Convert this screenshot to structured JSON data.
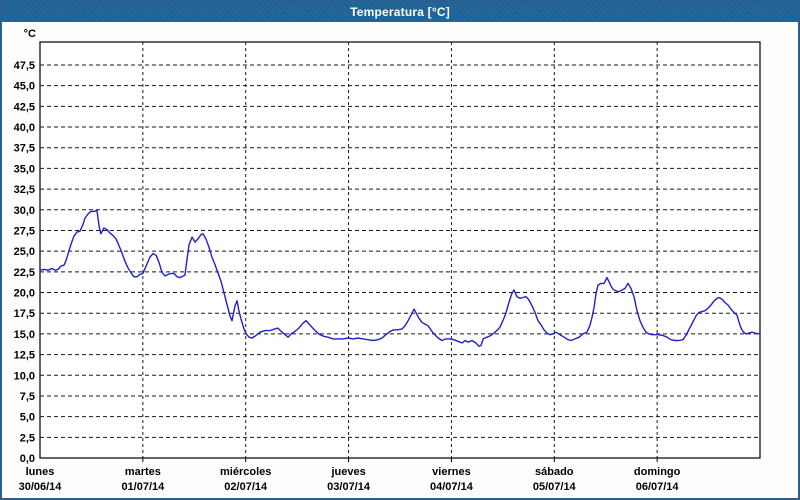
{
  "window": {
    "title": "Temperatura [°C]"
  },
  "colors": {
    "titlebar_bg": "#1e6295",
    "titlebar_text": "#ffffff",
    "window_border": "#28618f",
    "plot_bg": "#ffffff",
    "plot_border": "#000000",
    "grid": "#1a1a1a",
    "text": "#000000",
    "line": "#2121c8"
  },
  "chart_data": {
    "type": "line",
    "title": "Temperatura [°C]",
    "ylabel": "°C",
    "xlabel": "",
    "legend": "none",
    "grid": "dashed",
    "y_axis": {
      "unit_label": "°C",
      "min": 0,
      "max": 50.3,
      "tick_step": 2.5,
      "ticks": [
        {
          "v": 0.0,
          "label": "0,0"
        },
        {
          "v": 2.5,
          "label": "2,5"
        },
        {
          "v": 5.0,
          "label": "5,0"
        },
        {
          "v": 7.5,
          "label": "7,5"
        },
        {
          "v": 10.0,
          "label": "10,0"
        },
        {
          "v": 12.5,
          "label": "12,5"
        },
        {
          "v": 15.0,
          "label": "15,0"
        },
        {
          "v": 17.5,
          "label": "17,5"
        },
        {
          "v": 20.0,
          "label": "20,0"
        },
        {
          "v": 22.5,
          "label": "22,5"
        },
        {
          "v": 25.0,
          "label": "25,0"
        },
        {
          "v": 27.5,
          "label": "27,5"
        },
        {
          "v": 30.0,
          "label": "30,0"
        },
        {
          "v": 32.5,
          "label": "32,5"
        },
        {
          "v": 35.0,
          "label": "35,0"
        },
        {
          "v": 37.5,
          "label": "37,5"
        },
        {
          "v": 40.0,
          "label": "40,0"
        },
        {
          "v": 42.5,
          "label": "42,5"
        },
        {
          "v": 45.0,
          "label": "45,0"
        },
        {
          "v": 47.5,
          "label": "47,5"
        }
      ]
    },
    "x_axis": {
      "hours_total": 168,
      "days": [
        {
          "name": "lunes",
          "date": "30/06/14"
        },
        {
          "name": "martes",
          "date": "01/07/14"
        },
        {
          "name": "miércoles",
          "date": "02/07/14"
        },
        {
          "name": "jueves",
          "date": "03/07/14"
        },
        {
          "name": "viernes",
          "date": "04/07/14"
        },
        {
          "name": "sábado",
          "date": "05/07/14"
        },
        {
          "name": "domingo",
          "date": "06/07/14"
        }
      ]
    },
    "series": [
      {
        "name": "Temperatura",
        "color": "#2121c8",
        "points": [
          [
            0,
            22.7
          ],
          [
            0.9,
            22.8
          ],
          [
            1.9,
            22.7
          ],
          [
            2.8,
            22.9
          ],
          [
            3.5,
            22.7
          ],
          [
            4.2,
            22.8
          ],
          [
            4.9,
            23.2
          ],
          [
            5.6,
            23.3
          ],
          [
            6.1,
            23.9
          ],
          [
            6.5,
            24.6
          ],
          [
            7.2,
            25.8
          ],
          [
            7.9,
            26.8
          ],
          [
            8.6,
            27.3
          ],
          [
            9.3,
            27.4
          ],
          [
            10,
            28.2
          ],
          [
            10.5,
            29
          ],
          [
            11.2,
            29.5
          ],
          [
            11.9,
            29.8
          ],
          [
            12.6,
            29.8
          ],
          [
            13.3,
            29.9
          ],
          [
            13.8,
            28
          ],
          [
            14.2,
            27.1
          ],
          [
            14.9,
            27.8
          ],
          [
            15.6,
            27.6
          ],
          [
            16.3,
            27.2
          ],
          [
            17,
            26.9
          ],
          [
            17.7,
            26.5
          ],
          [
            18.4,
            25.7
          ],
          [
            19.1,
            24.8
          ],
          [
            19.8,
            23.8
          ],
          [
            20.5,
            23
          ],
          [
            21.2,
            22.4
          ],
          [
            21.9,
            21.9
          ],
          [
            22.6,
            21.9
          ],
          [
            23.3,
            22.2
          ],
          [
            24,
            22.3
          ],
          [
            25,
            23.5
          ],
          [
            25.7,
            24.3
          ],
          [
            26.4,
            24.7
          ],
          [
            27.1,
            24.5
          ],
          [
            27.8,
            23.6
          ],
          [
            28.5,
            22.4
          ],
          [
            29.2,
            22
          ],
          [
            29.9,
            22.2
          ],
          [
            30.6,
            22.3
          ],
          [
            31.3,
            22.3
          ],
          [
            32,
            21.9
          ],
          [
            32.7,
            21.8
          ],
          [
            33.4,
            22
          ],
          [
            33.8,
            22.1
          ],
          [
            34.3,
            24
          ],
          [
            34.8,
            25.8
          ],
          [
            35.5,
            26.7
          ],
          [
            36.2,
            26.1
          ],
          [
            36.9,
            26.5
          ],
          [
            37.6,
            27
          ],
          [
            38,
            27.1
          ],
          [
            38.7,
            26.5
          ],
          [
            39.4,
            25.5
          ],
          [
            40.1,
            24.3
          ],
          [
            40.8,
            23.4
          ],
          [
            41.5,
            22.4
          ],
          [
            42.2,
            21.4
          ],
          [
            42.9,
            20
          ],
          [
            43.6,
            18.6
          ],
          [
            44.3,
            17.2
          ],
          [
            44.8,
            16.6
          ],
          [
            45.5,
            18.4
          ],
          [
            46,
            19
          ],
          [
            46.4,
            17.8
          ],
          [
            46.9,
            16.8
          ],
          [
            47.6,
            15.6
          ],
          [
            48.1,
            15
          ],
          [
            48.8,
            14.6
          ],
          [
            49.5,
            14.5
          ],
          [
            50.4,
            14.8
          ],
          [
            51.3,
            15.2
          ],
          [
            52.5,
            15.4
          ],
          [
            53.7,
            15.4
          ],
          [
            54.8,
            15.6
          ],
          [
            55.5,
            15.7
          ],
          [
            56.5,
            15.2
          ],
          [
            57.4,
            14.8
          ],
          [
            57.9,
            14.6
          ],
          [
            58.6,
            15
          ],
          [
            59.5,
            15.3
          ],
          [
            60.4,
            15.7
          ],
          [
            61.4,
            16.3
          ],
          [
            62.1,
            16.6
          ],
          [
            62.8,
            16.2
          ],
          [
            63.5,
            15.8
          ],
          [
            64.4,
            15.3
          ],
          [
            65.3,
            14.9
          ],
          [
            66.3,
            14.7
          ],
          [
            67.2,
            14.6
          ],
          [
            68.4,
            14.4
          ],
          [
            69.5,
            14.4
          ],
          [
            70.7,
            14.4
          ],
          [
            71.9,
            14.5
          ],
          [
            73,
            14.4
          ],
          [
            74.2,
            14.5
          ],
          [
            75.4,
            14.4
          ],
          [
            76.5,
            14.3
          ],
          [
            77.7,
            14.2
          ],
          [
            78.9,
            14.3
          ],
          [
            79.8,
            14.5
          ],
          [
            80.7,
            14.9
          ],
          [
            81.7,
            15.3
          ],
          [
            82.6,
            15.5
          ],
          [
            83.5,
            15.5
          ],
          [
            84.5,
            15.6
          ],
          [
            85.2,
            16
          ],
          [
            85.9,
            16.6
          ],
          [
            86.6,
            17.3
          ],
          [
            87.3,
            18
          ],
          [
            87.7,
            17.6
          ],
          [
            88.4,
            16.9
          ],
          [
            89.1,
            16.4
          ],
          [
            89.8,
            16.2
          ],
          [
            90.5,
            16
          ],
          [
            91.2,
            15.5
          ],
          [
            91.9,
            15
          ],
          [
            92.9,
            14.5
          ],
          [
            93.8,
            14.2
          ],
          [
            94.7,
            14.4
          ],
          [
            95.7,
            14.4
          ],
          [
            96.6,
            14.3
          ],
          [
            97.5,
            14.1
          ],
          [
            98.5,
            13.9
          ],
          [
            99.2,
            14.2
          ],
          [
            99.9,
            14
          ],
          [
            100.8,
            14.2
          ],
          [
            101.7,
            13.9
          ],
          [
            102.4,
            13.5
          ],
          [
            102.9,
            13.6
          ],
          [
            103.4,
            14.4
          ],
          [
            104.3,
            14.6
          ],
          [
            105.2,
            14.8
          ],
          [
            105.9,
            15.1
          ],
          [
            106.6,
            15.4
          ],
          [
            107.3,
            15.8
          ],
          [
            108,
            16.6
          ],
          [
            108.7,
            17.5
          ],
          [
            109.4,
            18.8
          ],
          [
            110.1,
            19.9
          ],
          [
            110.6,
            20.3
          ],
          [
            111.3,
            19.5
          ],
          [
            112,
            19.3
          ],
          [
            112.7,
            19.4
          ],
          [
            113.4,
            19.5
          ],
          [
            114.1,
            19.1
          ],
          [
            114.8,
            18.4
          ],
          [
            115.5,
            17.6
          ],
          [
            116.2,
            16.6
          ],
          [
            116.9,
            16.1
          ],
          [
            117.6,
            15.5
          ],
          [
            118.3,
            15.1
          ],
          [
            119,
            14.9
          ],
          [
            119.7,
            15
          ],
          [
            120.4,
            15.2
          ],
          [
            121.3,
            14.9
          ],
          [
            122.3,
            14.6
          ],
          [
            123.2,
            14.3
          ],
          [
            123.9,
            14.2
          ],
          [
            124.8,
            14.4
          ],
          [
            125.8,
            14.6
          ],
          [
            126.7,
            15
          ],
          [
            127.6,
            15.2
          ],
          [
            128.3,
            16
          ],
          [
            128.8,
            17
          ],
          [
            129.3,
            18.2
          ],
          [
            129.7,
            19.8
          ],
          [
            130.2,
            20.9
          ],
          [
            130.9,
            21.1
          ],
          [
            131.6,
            21.1
          ],
          [
            132.3,
            21.8
          ],
          [
            132.8,
            21.3
          ],
          [
            133.2,
            20.8
          ],
          [
            133.7,
            20.4
          ],
          [
            134.4,
            20.2
          ],
          [
            135.1,
            20.1
          ],
          [
            135.8,
            20.3
          ],
          [
            136.5,
            20.5
          ],
          [
            137.2,
            21.1
          ],
          [
            137.9,
            20.5
          ],
          [
            138.6,
            19.5
          ],
          [
            139.3,
            17.8
          ],
          [
            140,
            16.6
          ],
          [
            140.7,
            15.8
          ],
          [
            141.4,
            15.2
          ],
          [
            142.1,
            15
          ],
          [
            142.8,
            14.9
          ],
          [
            143.5,
            14.9
          ],
          [
            144.4,
            14.9
          ],
          [
            145.4,
            14.8
          ],
          [
            146.3,
            14.6
          ],
          [
            147.2,
            14.3
          ],
          [
            148.2,
            14.2
          ],
          [
            149.1,
            14.2
          ],
          [
            150,
            14.3
          ],
          [
            150.7,
            14.8
          ],
          [
            151.7,
            15.8
          ],
          [
            152.4,
            16.5
          ],
          [
            153.1,
            17.2
          ],
          [
            153.8,
            17.6
          ],
          [
            154.5,
            17.7
          ],
          [
            155.2,
            17.8
          ],
          [
            155.9,
            18.1
          ],
          [
            156.6,
            18.5
          ],
          [
            157.3,
            19
          ],
          [
            158,
            19.3
          ],
          [
            158.4,
            19.4
          ],
          [
            159.1,
            19.2
          ],
          [
            159.8,
            18.8
          ],
          [
            160.5,
            18.5
          ],
          [
            161.2,
            18
          ],
          [
            161.9,
            17.6
          ],
          [
            162.6,
            17.3
          ],
          [
            163,
            16.6
          ],
          [
            163.5,
            15.8
          ],
          [
            164,
            15.3
          ],
          [
            164.7,
            15
          ],
          [
            165.4,
            15.1
          ],
          [
            166.1,
            15.2
          ],
          [
            166.8,
            15.1
          ],
          [
            167.5,
            15
          ],
          [
            168,
            15.1
          ]
        ]
      }
    ]
  }
}
